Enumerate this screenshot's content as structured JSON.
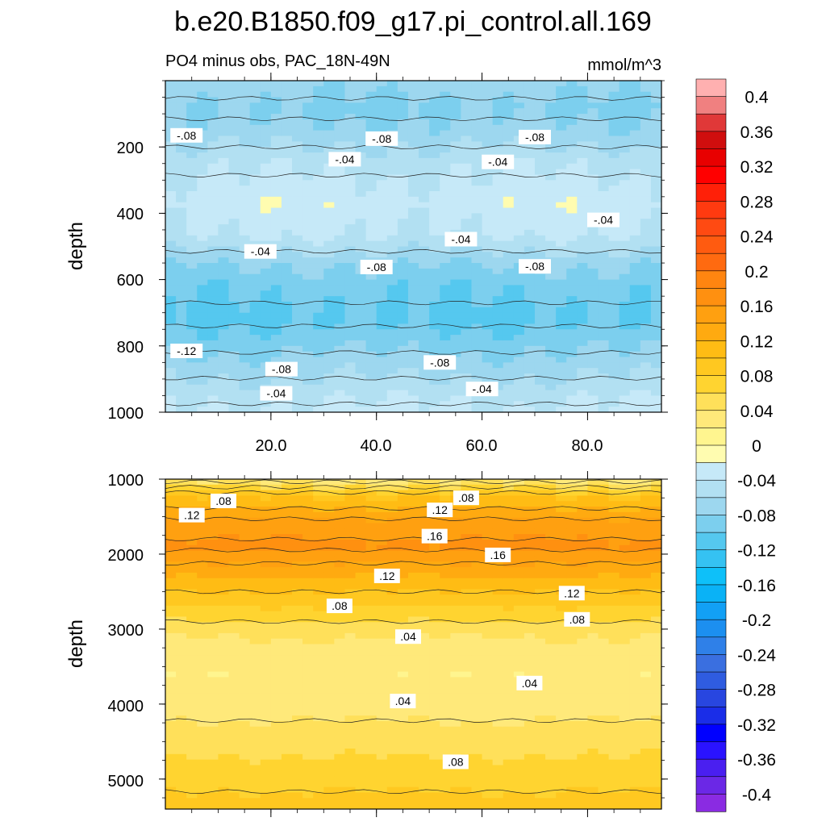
{
  "chart_data": {
    "type": "heatmap",
    "title": "b.e20.B1850.f09_g17.pi_control.all.169",
    "units": "mmol/m^3",
    "colorbar": {
      "levels": [
        -0.42,
        -0.4,
        -0.38,
        -0.36,
        -0.34,
        -0.32,
        -0.3,
        -0.28,
        -0.26,
        -0.24,
        -0.22,
        -0.2,
        -0.18,
        -0.16,
        -0.14,
        -0.12,
        -0.1,
        -0.08,
        -0.06,
        -0.04,
        -0.02,
        0,
        0.02,
        0.04,
        0.06,
        0.08,
        0.1,
        0.12,
        0.14,
        0.16,
        0.18,
        0.2,
        0.22,
        0.24,
        0.26,
        0.28,
        0.3,
        0.32,
        0.34,
        0.36,
        0.38,
        0.4,
        0.42
      ],
      "colors": [
        "#8a2be2",
        "#6b28e6",
        "#4a1ff0",
        "#2a13ff",
        "#0000ff",
        "#1a2de8",
        "#2846e0",
        "#2f5ce0",
        "#3a6fe0",
        "#2f80e8",
        "#1c8ff0",
        "#12a0f5",
        "#0ab2f6",
        "#0ec0f9",
        "#35c2f2",
        "#55c8ef",
        "#7ccfee",
        "#9dd7ef",
        "#b2e0f2",
        "#c6e9f8",
        "#fffcb0",
        "#fff58f",
        "#ffe97a",
        "#ffe05a",
        "#ffd430",
        "#ffc820",
        "#ffbc14",
        "#ffaa10",
        "#ffa010",
        "#ff9010",
        "#ff8510",
        "#ff6a10",
        "#ff5b10",
        "#ff4a12",
        "#ff3a10",
        "#ff2008",
        "#ff0000",
        "#e80000",
        "#d00e0e",
        "#e03838",
        "#f08080",
        "#ffb0b0"
      ],
      "tick_labels": [
        "0.4",
        "0.36",
        "0.32",
        "0.28",
        "0.24",
        "0.2",
        "0.16",
        "0.12",
        "0.08",
        "0.04",
        "0",
        "-0.04",
        "-0.08",
        "-0.12",
        "-0.16",
        "-0.2",
        "-0.24",
        "-0.28",
        "-0.32",
        "-0.36",
        "-0.4"
      ]
    },
    "panels": [
      {
        "name": "upper",
        "subtitle_left": "PO4 minus obs, PAC_18N-49N",
        "subtitle_right": "mmol/m^3",
        "ylabel": "depth",
        "xlabel": "",
        "xlim": [
          0,
          94
        ],
        "ylim": [
          0,
          1000
        ],
        "y_reversed": true,
        "xticks": [
          20,
          40,
          60,
          80
        ],
        "xtick_labels": [
          "20.0",
          "40.0",
          "60.0",
          "80.0"
        ],
        "yticks": [
          200,
          400,
          600,
          800,
          1000
        ],
        "ytick_labels": [
          "200",
          "400",
          "600",
          "800",
          "1000"
        ],
        "profile": [
          {
            "depth": 0,
            "value": -0.07
          },
          {
            "depth": 80,
            "value": -0.085
          },
          {
            "depth": 150,
            "value": -0.075
          },
          {
            "depth": 250,
            "value": -0.045
          },
          {
            "depth": 370,
            "value": -0.028
          },
          {
            "depth": 470,
            "value": -0.04
          },
          {
            "depth": 560,
            "value": -0.08
          },
          {
            "depth": 620,
            "value": -0.095
          },
          {
            "depth": 720,
            "value": -0.105
          },
          {
            "depth": 800,
            "value": -0.085
          },
          {
            "depth": 880,
            "value": -0.065
          },
          {
            "depth": 950,
            "value": -0.045
          },
          {
            "depth": 1000,
            "value": -0.035
          }
        ],
        "contour_labels": [
          {
            "text": "-.08",
            "x": 4,
            "depth": 165
          },
          {
            "text": "-.08",
            "x": 41,
            "depth": 175
          },
          {
            "text": "-.08",
            "x": 70,
            "depth": 170
          },
          {
            "text": "-.04",
            "x": 34,
            "depth": 237
          },
          {
            "text": "-.04",
            "x": 63,
            "depth": 245
          },
          {
            "text": "-.04",
            "x": 83,
            "depth": 420
          },
          {
            "text": "-.04",
            "x": 18,
            "depth": 515
          },
          {
            "text": "-.04",
            "x": 56,
            "depth": 478
          },
          {
            "text": "-.08",
            "x": 40,
            "depth": 562
          },
          {
            "text": "-.08",
            "x": 70,
            "depth": 560
          },
          {
            "text": "-.12",
            "x": 4,
            "depth": 815
          },
          {
            "text": "-.08",
            "x": 22,
            "depth": 870
          },
          {
            "text": "-.08",
            "x": 52,
            "depth": 850
          },
          {
            "text": "-.04",
            "x": 21,
            "depth": 943
          },
          {
            "text": "-.04",
            "x": 60,
            "depth": 930
          }
        ]
      },
      {
        "name": "lower",
        "ylabel": "depth",
        "xlabel": "",
        "xlim": [
          0,
          94
        ],
        "ylim": [
          1000,
          5400
        ],
        "y_reversed": true,
        "yticks": [
          1000,
          2000,
          3000,
          4000,
          5000
        ],
        "ytick_labels": [
          "1000",
          "2000",
          "3000",
          "4000",
          "5000"
        ],
        "profile": [
          {
            "depth": 1000,
            "value": 0.03
          },
          {
            "depth": 1250,
            "value": 0.1
          },
          {
            "depth": 1600,
            "value": 0.15
          },
          {
            "depth": 1900,
            "value": 0.165
          },
          {
            "depth": 2300,
            "value": 0.12
          },
          {
            "depth": 2700,
            "value": 0.08
          },
          {
            "depth": 3100,
            "value": 0.04
          },
          {
            "depth": 3600,
            "value": 0.022
          },
          {
            "depth": 4100,
            "value": 0.035
          },
          {
            "depth": 4700,
            "value": 0.06
          },
          {
            "depth": 5400,
            "value": 0.09
          }
        ],
        "contour_labels": [
          {
            "text": ".12",
            "x": 5,
            "depth": 1480
          },
          {
            "text": ".08",
            "x": 11,
            "depth": 1290
          },
          {
            "text": ".12",
            "x": 52,
            "depth": 1410
          },
          {
            "text": ".08",
            "x": 57,
            "depth": 1250
          },
          {
            "text": ".16",
            "x": 51,
            "depth": 1760
          },
          {
            "text": ".16",
            "x": 63,
            "depth": 2010
          },
          {
            "text": ".12",
            "x": 42,
            "depth": 2290
          },
          {
            "text": ".12",
            "x": 77,
            "depth": 2520
          },
          {
            "text": ".08",
            "x": 33,
            "depth": 2690
          },
          {
            "text": ".08",
            "x": 78,
            "depth": 2870
          },
          {
            "text": ".04",
            "x": 46,
            "depth": 3100
          },
          {
            "text": ".04",
            "x": 69,
            "depth": 3720
          },
          {
            "text": ".04",
            "x": 45,
            "depth": 3960
          },
          {
            "text": ".08",
            "x": 55,
            "depth": 4770
          }
        ]
      }
    ]
  }
}
